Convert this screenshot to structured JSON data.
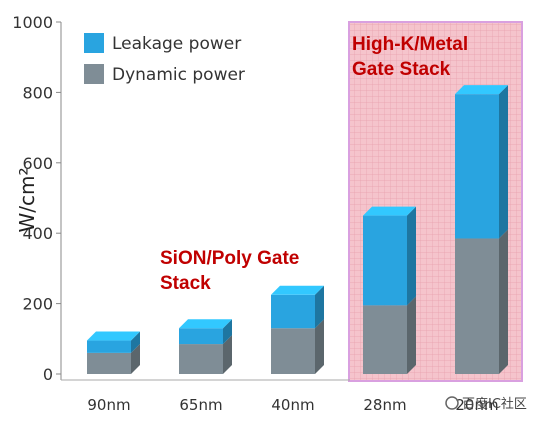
{
  "chart_data": {
    "type": "bar",
    "stacked": true,
    "style": "3d",
    "categories": [
      "90nm",
      "65nm",
      "40nm",
      "28nm",
      "20nm"
    ],
    "series": [
      {
        "name": "Dynamic power",
        "values": [
          60,
          85,
          130,
          195,
          385
        ],
        "color": "#7f8d96"
      },
      {
        "name": "Leakage power",
        "values": [
          35,
          45,
          95,
          255,
          410
        ],
        "color": "#29a4e0"
      }
    ],
    "title": "",
    "xlabel": "",
    "ylabel": "W/cm²",
    "ylim": [
      0,
      1000
    ],
    "yticks": [
      0,
      200,
      400,
      600,
      800,
      1000
    ],
    "grid": false,
    "legend_position": "top-left",
    "annotations": [
      {
        "lines": [
          "SiON/Poly Gate",
          "Stack"
        ],
        "color": "#c00000"
      },
      {
        "lines": [
          "High-K/Metal",
          "Gate Stack"
        ],
        "color": "#c00000"
      }
    ],
    "highlight_region": {
      "categories": [
        "28nm",
        "20nm"
      ],
      "fill": "#f5c4cc",
      "border": "#d9a0e0"
    }
  },
  "watermark": "百度IC社区"
}
